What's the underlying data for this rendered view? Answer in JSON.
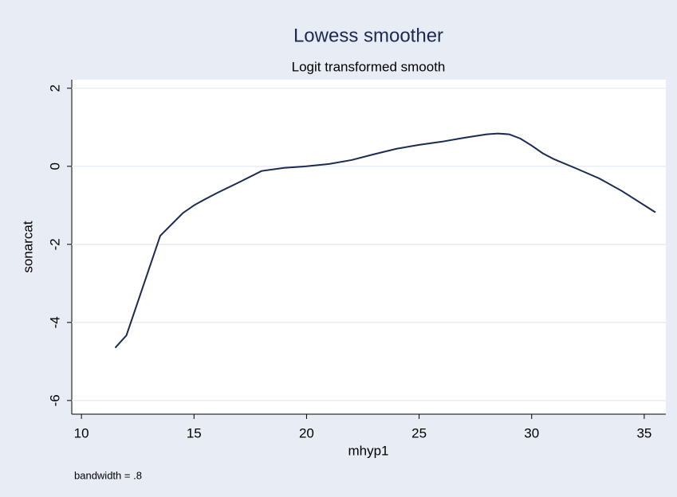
{
  "chart_data": {
    "type": "line",
    "title": "Lowess smoother",
    "subtitle": "Logit transformed smooth",
    "x_label": "mhyp1",
    "y_label": "sonarcat",
    "note": "bandwidth = .8",
    "x": [
      11.5,
      12,
      13.5,
      14.5,
      15,
      15.5,
      16,
      17,
      18,
      19,
      20,
      21,
      22,
      23,
      24,
      25,
      26,
      27,
      28,
      28.5,
      29,
      29.5,
      30,
      30.5,
      31,
      32,
      33,
      34,
      35.5
    ],
    "series": [
      {
        "color": "#1a2a52",
        "values": [
          -4.65,
          -4.33,
          -1.78,
          -1.2,
          -1.0,
          -0.84,
          -0.69,
          -0.41,
          -0.12,
          -0.04,
          0.0,
          0.06,
          0.16,
          0.31,
          0.45,
          0.55,
          0.63,
          0.73,
          0.82,
          0.84,
          0.82,
          0.71,
          0.53,
          0.33,
          0.18,
          -0.06,
          -0.31,
          -0.63,
          -1.18
        ]
      }
    ],
    "xlim": [
      9.57,
      35.96
    ],
    "xticks": [
      10,
      15,
      20,
      25,
      30,
      35
    ],
    "ylim": [
      -6.35,
      2.22
    ],
    "yticks": [
      -6,
      -4,
      -2,
      0,
      2
    ],
    "grid": true
  }
}
